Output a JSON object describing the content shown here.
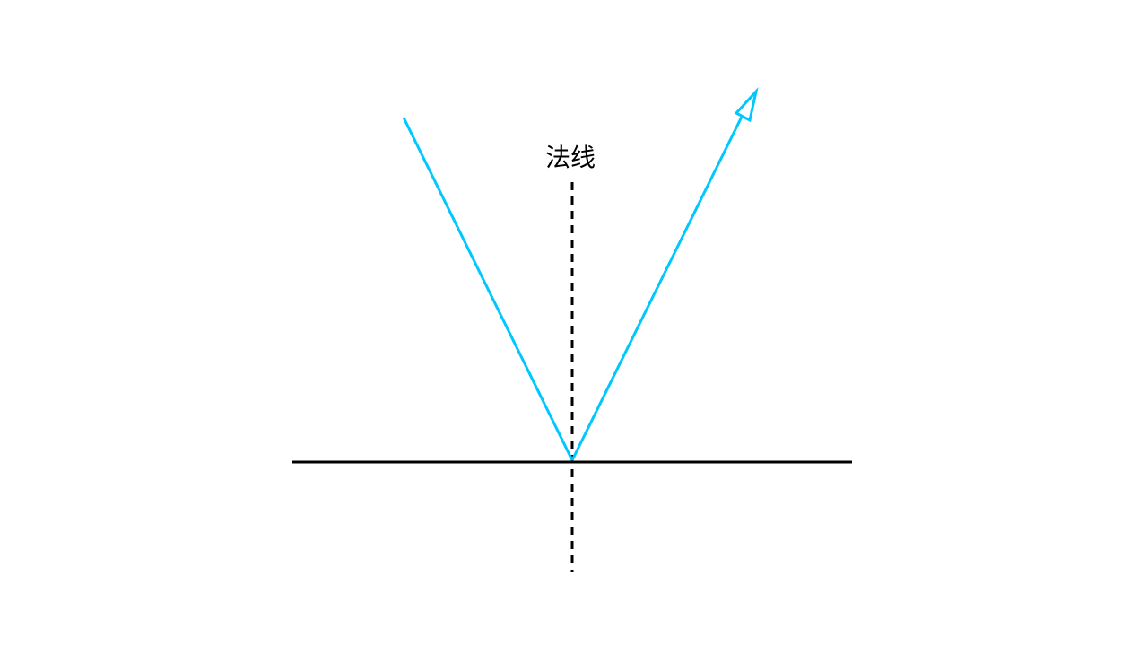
{
  "diagram": {
    "normal_label": "法线"
  },
  "colors": {
    "background": "#ffffff",
    "ray": "#00c8ff",
    "surface": "#000000",
    "normal": "#000000"
  }
}
